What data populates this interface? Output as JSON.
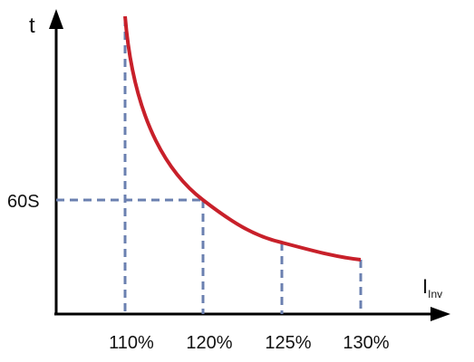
{
  "axes": {
    "y_label": "t",
    "x_label": "I",
    "x_label_subscript": "Inv"
  },
  "y_marker": "60S",
  "x_markers": [
    "110%",
    "120%",
    "125%",
    "130%"
  ]
}
